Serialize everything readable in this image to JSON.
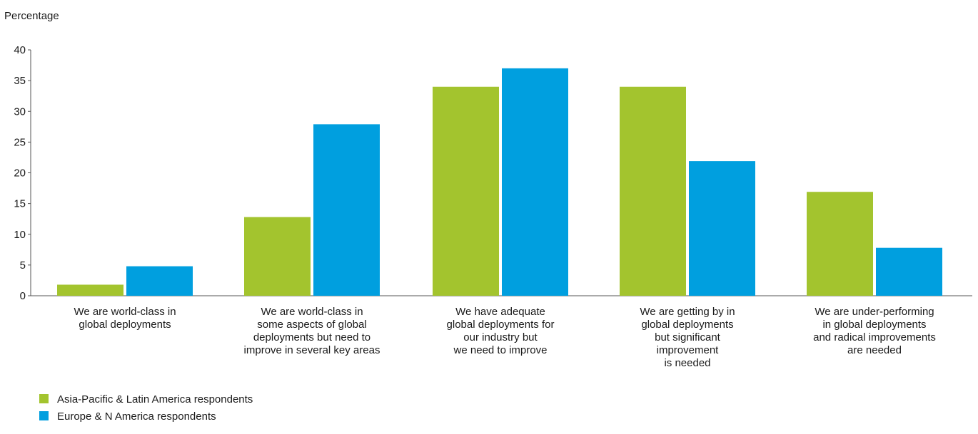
{
  "chart_data": {
    "type": "bar",
    "title": "",
    "xlabel": "",
    "ylabel": "Percentage",
    "ylim": [
      0,
      40
    ],
    "yticks": [
      0,
      5,
      10,
      15,
      20,
      25,
      30,
      35,
      40
    ],
    "grid": false,
    "legend_position": "bottom-left",
    "categories": [
      [
        "We are world-class in",
        "global deployments"
      ],
      [
        "We are world-class in",
        "some aspects of global",
        "deployments but need to",
        "improve in several key areas"
      ],
      [
        "We have adequate",
        "global deployments for",
        "our industry but",
        "we need to improve"
      ],
      [
        "We are getting by in",
        "global deployments",
        "but significant",
        "improvement",
        "is needed"
      ],
      [
        "We are under-performing",
        "in global deployments",
        "and radical improvements",
        "are needed"
      ]
    ],
    "series": [
      {
        "name": "Asia-Pacific & Latin America respondents",
        "color": "#a3c42e",
        "values": [
          1.8,
          12.8,
          34,
          34,
          16.9
        ]
      },
      {
        "name": "Europe & N America respondents",
        "color": "#009fdf",
        "values": [
          4.8,
          27.9,
          37,
          21.9,
          7.8
        ]
      }
    ]
  }
}
